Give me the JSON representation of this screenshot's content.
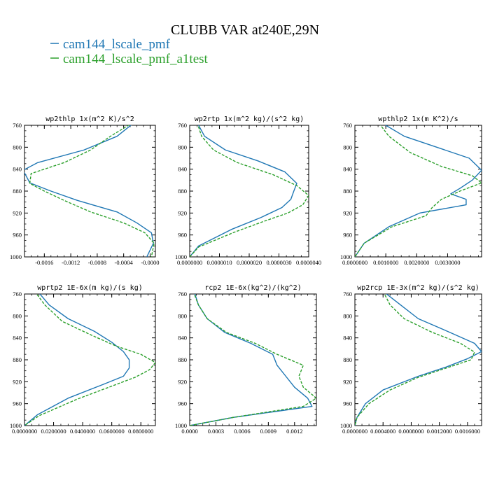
{
  "figure": {
    "title": "CLUBB VAR at240E,29N",
    "legend": [
      {
        "name": "cam144_lscale_pmf",
        "color": "#1f77b4",
        "dash": "solid"
      },
      {
        "name": "cam144_lscale_pmf_a1test",
        "color": "#2ca02c",
        "dash": "dashed"
      }
    ]
  },
  "chart_data": [
    {
      "type": "line",
      "title": "wp2thlp  1x(m^2 K)/s^2",
      "xlim": [
        -0.0019,
        8e-05
      ],
      "ylim": [
        760,
        1000
      ],
      "y_inverted": true,
      "xticks": [
        -0.0016,
        -0.0012,
        -0.0008,
        -0.0004,
        0.0
      ],
      "xtick_labels": [
        "-0.0016",
        "-0.0012",
        "-0.0008",
        "-0.0004",
        "-0.0000"
      ],
      "yticks": [
        760,
        800,
        840,
        880,
        920,
        960,
        1000
      ],
      "series": [
        {
          "name": "cam144_lscale_pmf",
          "x": [
            -0.00024,
            -0.0005,
            -0.001,
            -0.0017,
            -0.00192,
            -0.00182,
            -0.0015,
            -0.0011,
            -0.0005,
            -0.0002,
            2e-05,
            5e-05,
            -5e-05
          ],
          "y": [
            755,
            780,
            805,
            828,
            842,
            865,
            880,
            897,
            918,
            938,
            956,
            975,
            1000
          ]
        },
        {
          "name": "cam144_lscale_pmf_a1test",
          "x": [
            -0.00026,
            -0.0006,
            -0.0009,
            -0.0013,
            -0.0018,
            -0.00182,
            -0.0016,
            -0.0013,
            -0.0009,
            -0.0004,
            -8e-05,
            6e-05,
            2e-05
          ],
          "y": [
            755,
            780,
            805,
            828,
            848,
            866,
            880,
            897,
            918,
            938,
            956,
            975,
            1000
          ]
        }
      ]
    },
    {
      "type": "line",
      "title": "wp2rtp  1x(m^2 kg)/(s^2 kg)",
      "xlim": [
        0.0,
        4e-06
      ],
      "ylim": [
        760,
        1000
      ],
      "y_inverted": true,
      "xticks": [
        0.0,
        1e-06,
        2e-06,
        3e-06,
        4e-06
      ],
      "xtick_labels": [
        "0.0000000",
        "0.0000010",
        "0.0000020",
        "0.0000030",
        "0.0000040"
      ],
      "yticks": [
        760,
        800,
        840,
        880,
        920,
        960,
        1000
      ],
      "series": [
        {
          "name": "cam144_lscale_pmf",
          "x": [
            2.5e-07,
            5e-07,
            1.2e-06,
            2.3e-06,
            3.2e-06,
            3.6e-06,
            3.5e-06,
            3.4e-06,
            3.1e-06,
            2.4e-06,
            1.4e-06,
            3e-07,
            0.0
          ],
          "y": [
            755,
            780,
            805,
            825,
            845,
            866,
            880,
            895,
            910,
            928,
            950,
            980,
            1000
          ]
        },
        {
          "name": "cam144_lscale_pmf_a1test",
          "x": [
            2.5e-07,
            4e-07,
            8e-07,
            1.6e-06,
            2.8e-06,
            3.6e-06,
            4e-06,
            3.8e-06,
            3.3e-06,
            2.5e-06,
            1.5e-06,
            3e-07,
            0.0
          ],
          "y": [
            755,
            780,
            805,
            828,
            850,
            870,
            888,
            905,
            920,
            935,
            955,
            982,
            1000
          ]
        }
      ]
    },
    {
      "type": "line",
      "title": "wpthlp2  1x(m K^2)/s",
      "xlim": [
        0.0,
        0.0041
      ],
      "ylim": [
        760,
        1000
      ],
      "y_inverted": true,
      "xticks": [
        0.0,
        0.001,
        0.002,
        0.003
      ],
      "xtick_labels": [
        "0.0000000",
        "0.0010000",
        "0.0020000",
        "0.0030000"
      ],
      "yticks": [
        760,
        800,
        840,
        880,
        920,
        960,
        1000
      ],
      "series": [
        {
          "name": "cam144_lscale_pmf",
          "x": [
            0.0007,
            0.0016,
            0.0037,
            0.0041,
            0.0038,
            0.0034,
            0.0031,
            0.0036,
            0.0036,
            0.0021,
            0.0011,
            0.0003,
            0.0
          ],
          "y": [
            750,
            780,
            820,
            842,
            860,
            875,
            885,
            895,
            905,
            920,
            945,
            975,
            1000
          ]
        },
        {
          "name": "cam144_lscale_pmf_a1test",
          "x": [
            0.0007,
            0.0011,
            0.0018,
            0.0028,
            0.0038,
            0.0041,
            0.0034,
            0.0028,
            0.0025,
            0.0023,
            0.0012,
            0.0003,
            0.0
          ],
          "y": [
            750,
            780,
            810,
            835,
            852,
            865,
            880,
            895,
            910,
            925,
            945,
            975,
            1000
          ]
        }
      ]
    },
    {
      "type": "line",
      "title": "wprtp2  1E-6x(m kg)/(s kg)",
      "xlim": [
        0.0,
        0.09
      ],
      "ylim": [
        760,
        1000
      ],
      "y_inverted": true,
      "xticks": [
        0.0,
        0.02,
        0.04,
        0.06,
        0.08
      ],
      "xtick_labels": [
        "0.0000000",
        "0.0200000",
        "0.0400000",
        "0.0600000",
        "0.0800000"
      ],
      "yticks": [
        760,
        800,
        840,
        880,
        920,
        960,
        1000
      ],
      "series": [
        {
          "name": "cam144_lscale_pmf",
          "x": [
            0.009,
            0.017,
            0.03,
            0.048,
            0.06,
            0.068,
            0.072,
            0.072,
            0.068,
            0.054,
            0.03,
            0.009,
            0.0
          ],
          "y": [
            755,
            780,
            805,
            828,
            848,
            865,
            880,
            895,
            910,
            925,
            950,
            980,
            1000
          ]
        },
        {
          "name": "cam144_lscale_pmf_a1test",
          "x": [
            0.007,
            0.014,
            0.026,
            0.046,
            0.063,
            0.08,
            0.09,
            0.086,
            0.076,
            0.06,
            0.036,
            0.01,
            0.0
          ],
          "y": [
            755,
            780,
            810,
            835,
            855,
            870,
            885,
            898,
            912,
            928,
            952,
            982,
            1000
          ]
        }
      ]
    },
    {
      "type": "line",
      "title": "rcp2  1E-6x(kg^2)/(kg^2)",
      "xlim": [
        0.0,
        0.00145
      ],
      "ylim": [
        760,
        1000
      ],
      "y_inverted": true,
      "xticks": [
        0.0,
        0.0003,
        0.0006,
        0.0009,
        0.0012
      ],
      "xtick_labels": [
        "0.0000",
        "0.0003",
        "0.0006",
        "0.0009",
        "0.0012"
      ],
      "yticks": [
        760,
        800,
        840,
        880,
        920,
        960,
        1000
      ],
      "series": [
        {
          "name": "cam144_lscale_pmf",
          "x": [
            5e-05,
            0.0001,
            0.0002,
            0.0004,
            0.0007,
            0.00095,
            0.001,
            0.0011,
            0.0012,
            0.00135,
            0.0014,
            0.0005,
            0.0
          ],
          "y": [
            755,
            780,
            805,
            830,
            850,
            870,
            890,
            910,
            930,
            950,
            965,
            985,
            1000
          ]
        },
        {
          "name": "cam144_lscale_pmf_a1test",
          "x": [
            4e-05,
            0.0001,
            0.0002,
            0.00042,
            0.00075,
            0.001,
            0.0013,
            0.00125,
            0.0013,
            0.00145,
            0.0013,
            0.0005,
            0.0
          ],
          "y": [
            755,
            780,
            805,
            830,
            850,
            870,
            890,
            910,
            930,
            950,
            965,
            985,
            1000
          ]
        }
      ]
    },
    {
      "type": "line",
      "title": "wp2rcp  1E-3x(m^2 kg)/(s^2 kg)",
      "xlim": [
        0.0,
        0.0018
      ],
      "ylim": [
        760,
        1000
      ],
      "y_inverted": true,
      "xticks": [
        0.0,
        0.0004,
        0.0008,
        0.0012,
        0.0016
      ],
      "xtick_labels": [
        "0.0000000",
        "0.0004000",
        "0.0008000",
        "0.0012000",
        "0.0016000"
      ],
      "yticks": [
        760,
        800,
        840,
        880,
        920,
        960,
        1000
      ],
      "series": [
        {
          "name": "cam144_lscale_pmf",
          "x": [
            0.0004,
            0.00065,
            0.0009,
            0.00135,
            0.0017,
            0.0018,
            0.0016,
            0.0013,
            0.0009,
            0.0004,
            0.00015,
            3e-05,
            0.0
          ],
          "y": [
            755,
            780,
            805,
            830,
            850,
            865,
            878,
            893,
            910,
            935,
            960,
            985,
            1000
          ]
        },
        {
          "name": "cam144_lscale_pmf_a1test",
          "x": [
            0.0004,
            0.0005,
            0.0007,
            0.0011,
            0.0015,
            0.0017,
            0.00165,
            0.0013,
            0.0009,
            0.0005,
            0.0002,
            3e-05,
            0.0
          ],
          "y": [
            755,
            780,
            805,
            830,
            850,
            866,
            880,
            895,
            912,
            935,
            960,
            985,
            1000
          ]
        }
      ]
    }
  ]
}
